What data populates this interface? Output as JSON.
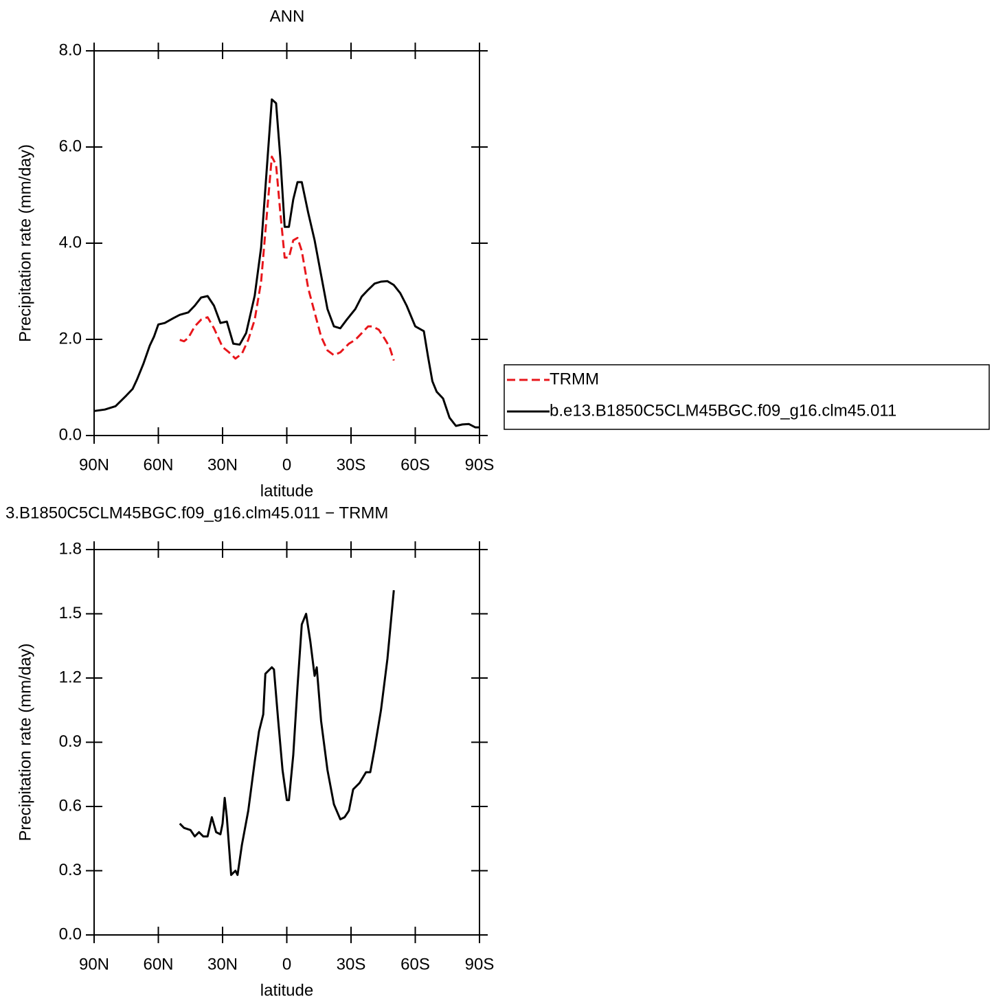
{
  "chart_data": [
    {
      "type": "line",
      "title": "ANN",
      "xlabel": "latitude",
      "ylabel": "Precipitation rate (mm/day)",
      "xlim": [
        90,
        -90
      ],
      "xticks": [
        {
          "value": 90,
          "label": "90N"
        },
        {
          "value": 60,
          "label": "60N"
        },
        {
          "value": 30,
          "label": "30N"
        },
        0,
        {
          "value": -30,
          "label": "30S"
        },
        {
          "value": -60,
          "label": "60S"
        },
        {
          "value": -90,
          "label": "90S"
        }
      ],
      "ylim": [
        0,
        8
      ],
      "yticks": [
        {
          "value": 0,
          "label": "0.0"
        },
        {
          "value": 2,
          "label": "2.0"
        },
        {
          "value": 4,
          "label": "4.0"
        },
        {
          "value": 6,
          "label": "6.0"
        },
        {
          "value": 8,
          "label": "8.0"
        }
      ],
      "legend": "right",
      "series": [
        {
          "name": "TRMM",
          "color": "#e8161b",
          "linestyle": "dashed",
          "x": [
            50,
            48,
            46,
            43,
            40,
            37,
            34,
            30,
            27,
            24,
            21,
            18,
            15,
            12,
            9,
            7,
            5,
            3,
            1,
            -1,
            -3,
            -5,
            -7,
            -10,
            -13,
            -16,
            -19,
            -22,
            -25,
            -29,
            -32,
            -35,
            -38,
            -40,
            -43,
            -46,
            -48,
            -50
          ],
          "values": [
            1.99,
            1.96,
            2.03,
            2.27,
            2.41,
            2.46,
            2.23,
            1.84,
            1.73,
            1.6,
            1.7,
            1.99,
            2.41,
            3.2,
            4.77,
            5.8,
            5.63,
            4.63,
            3.7,
            3.7,
            4.06,
            4.11,
            3.84,
            3.06,
            2.56,
            2.06,
            1.77,
            1.67,
            1.73,
            1.91,
            1.99,
            2.13,
            2.27,
            2.27,
            2.2,
            1.99,
            1.84,
            1.56
          ]
        },
        {
          "name": "b.e13.B1850C5CLM45BGC.f09_g16.clm45.011",
          "color": "#000000",
          "linestyle": "solid",
          "x": [
            90,
            85,
            80,
            75,
            72,
            70,
            67,
            64,
            62,
            60,
            57,
            53,
            50,
            46,
            43,
            40,
            37,
            34,
            31,
            28,
            25,
            22,
            19,
            15,
            12,
            9,
            7,
            5,
            3,
            1,
            -1,
            -3,
            -5,
            -7,
            -10,
            -13,
            -16,
            -19,
            -22,
            -25,
            -28,
            -32,
            -35,
            -38,
            -41,
            -44,
            -47,
            -50,
            -53,
            -56,
            -60,
            -64,
            -66,
            -68,
            -70,
            -73,
            -76,
            -79,
            -82,
            -85,
            -88,
            -90
          ],
          "values": [
            0.51,
            0.54,
            0.61,
            0.83,
            0.97,
            1.16,
            1.49,
            1.87,
            2.06,
            2.31,
            2.34,
            2.44,
            2.51,
            2.56,
            2.7,
            2.87,
            2.9,
            2.7,
            2.34,
            2.37,
            1.91,
            1.89,
            2.13,
            2.91,
            3.91,
            5.77,
            6.99,
            6.91,
            5.77,
            4.34,
            4.34,
            4.91,
            5.27,
            5.27,
            4.63,
            4.06,
            3.34,
            2.63,
            2.27,
            2.23,
            2.41,
            2.63,
            2.89,
            3.03,
            3.16,
            3.2,
            3.21,
            3.13,
            2.96,
            2.7,
            2.27,
            2.17,
            1.63,
            1.13,
            0.91,
            0.77,
            0.37,
            0.2,
            0.23,
            0.24,
            0.17,
            0.17
          ]
        }
      ]
    },
    {
      "type": "line",
      "title": "3.B1850C5CLM45BGC.f09_g16.clm45.011 − TRMM",
      "xlabel": "latitude",
      "ylabel": "Precipitation rate (mm/day)",
      "xlim": [
        90,
        -90
      ],
      "xticks": [
        {
          "value": 90,
          "label": "90N"
        },
        {
          "value": 60,
          "label": "60N"
        },
        {
          "value": 30,
          "label": "30N"
        },
        0,
        {
          "value": -30,
          "label": "30S"
        },
        {
          "value": -60,
          "label": "60S"
        },
        {
          "value": -90,
          "label": "90S"
        }
      ],
      "ylim": [
        0,
        1.8
      ],
      "yticks": [
        {
          "value": 0,
          "label": "0.0"
        },
        0.3,
        0.6,
        0.9,
        1.2,
        1.5,
        1.8
      ],
      "series": [
        {
          "color": "#000000",
          "linestyle": "solid",
          "x": [
            50,
            48,
            45,
            43,
            41,
            39,
            37,
            35,
            33,
            31,
            30,
            29,
            28,
            26,
            24,
            23,
            21,
            18,
            15,
            13,
            11,
            10,
            8,
            7,
            6,
            4,
            2,
            0,
            -1,
            -3,
            -5,
            -7,
            -9,
            -11,
            -13,
            -14,
            -16,
            -19,
            -22,
            -25,
            -27,
            -29,
            -31,
            -34,
            -37,
            -39,
            -41,
            -44,
            -47,
            -50
          ],
          "values": [
            0.52,
            0.5,
            0.49,
            0.46,
            0.48,
            0.46,
            0.46,
            0.55,
            0.48,
            0.47,
            0.52,
            0.64,
            0.55,
            0.28,
            0.3,
            0.28,
            0.42,
            0.58,
            0.81,
            0.95,
            1.03,
            1.22,
            1.24,
            1.25,
            1.24,
            1.0,
            0.77,
            0.63,
            0.63,
            0.84,
            1.16,
            1.45,
            1.5,
            1.37,
            1.21,
            1.25,
            1.0,
            0.77,
            0.61,
            0.54,
            0.55,
            0.58,
            0.68,
            0.71,
            0.76,
            0.76,
            0.87,
            1.05,
            1.29,
            1.61
          ]
        }
      ]
    }
  ]
}
